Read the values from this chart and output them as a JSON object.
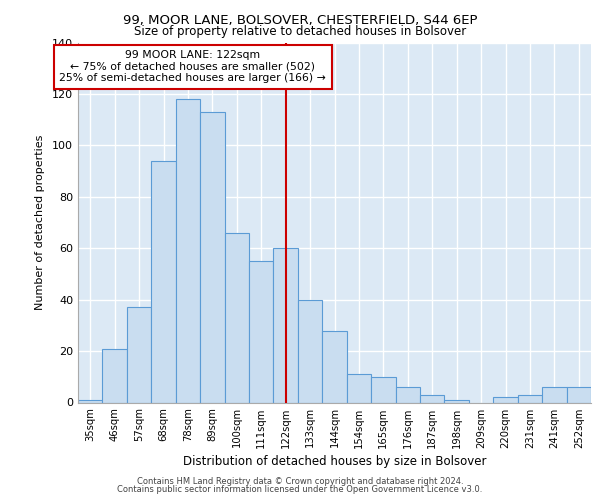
{
  "title1": "99, MOOR LANE, BOLSOVER, CHESTERFIELD, S44 6EP",
  "title2": "Size of property relative to detached houses in Bolsover",
  "xlabel": "Distribution of detached houses by size in Bolsover",
  "ylabel": "Number of detached properties",
  "categories": [
    "35sqm",
    "46sqm",
    "57sqm",
    "68sqm",
    "78sqm",
    "89sqm",
    "100sqm",
    "111sqm",
    "122sqm",
    "133sqm",
    "144sqm",
    "154sqm",
    "165sqm",
    "176sqm",
    "187sqm",
    "198sqm",
    "209sqm",
    "220sqm",
    "231sqm",
    "241sqm",
    "252sqm"
  ],
  "values": [
    1,
    21,
    37,
    94,
    118,
    113,
    66,
    55,
    60,
    40,
    28,
    11,
    10,
    6,
    3,
    1,
    0,
    2,
    3,
    6,
    6
  ],
  "bar_color": "#c9ddf0",
  "bar_edge_color": "#5b9bd5",
  "highlight_x": "122sqm",
  "highlight_color": "#cc0000",
  "annotation_title": "99 MOOR LANE: 122sqm",
  "annotation_line1": "← 75% of detached houses are smaller (502)",
  "annotation_line2": "25% of semi-detached houses are larger (166) →",
  "annotation_box_color": "#ffffff",
  "annotation_box_edge": "#cc0000",
  "ylim": [
    0,
    140
  ],
  "yticks": [
    0,
    20,
    40,
    60,
    80,
    100,
    120,
    140
  ],
  "plot_bg_color": "#dce9f5",
  "footer1": "Contains HM Land Registry data © Crown copyright and database right 2024.",
  "footer2": "Contains public sector information licensed under the Open Government Licence v3.0."
}
